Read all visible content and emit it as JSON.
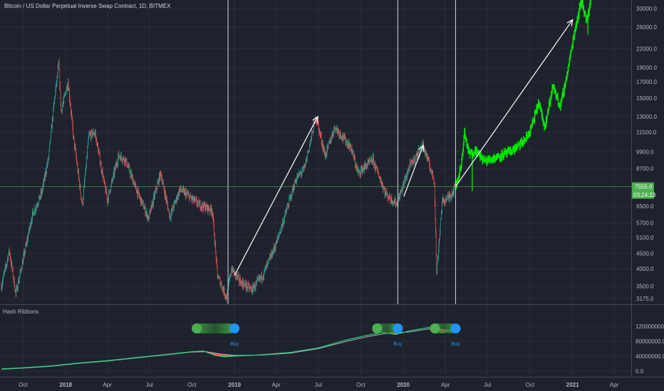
{
  "header": {
    "title": "Bitcoin / US Dollar Perpetual Inverse Swap Contract, 1D, BITMEX"
  },
  "hash_panel": {
    "title": "Hash Ribbons"
  },
  "colors": {
    "background": "#1e222d",
    "grid": "#2a2e39",
    "up": "#26a69a",
    "down": "#ef5350",
    "projection": "#00e600",
    "price_badge": "#4caf50",
    "fast_ma": "#26d07c",
    "slow_ma": "#aeb2bd",
    "compression": "#ef5350",
    "buy_label": "#2196f3",
    "axis_text": "#b2b5be"
  },
  "chart_data": {
    "type": "candlestick",
    "symbol": "XBTUSD",
    "exchange": "BITMEX",
    "timeframe": "1D",
    "y_scale": "log",
    "price_axis_ticks": [
      "30000.0",
      "26000.0",
      "22000.0",
      "19000.0",
      "17000.0",
      "15000.0",
      "13000.0",
      "11500.0",
      "9900.0",
      "8700.0",
      "6500.0",
      "5700.0",
      "5100.0",
      "4500.0",
      "4000.0",
      "3500.0",
      "3175.0"
    ],
    "price_axis_ticks_values": [
      30000,
      26000,
      22000,
      19000,
      17000,
      15000,
      13000,
      11500,
      9900,
      8700,
      6500,
      5700,
      5100,
      4500,
      4000,
      3500,
      3175
    ],
    "current_price": {
      "label": "7555.0",
      "value": 7555
    },
    "countdown": "03:24:23",
    "x_axis_ticks": [
      "Oct",
      "2018",
      "Apr",
      "Jul",
      "Oct",
      "2019",
      "Apr",
      "Jul",
      "Oct",
      "2020",
      "Apr",
      "Jul",
      "Oct",
      "2021",
      "Apr"
    ],
    "price_path": [
      [
        "2017-08-15",
        3500
      ],
      [
        "2017-09-01",
        4600
      ],
      [
        "2017-09-15",
        3300
      ],
      [
        "2017-10-01",
        4300
      ],
      [
        "2017-10-20",
        6000
      ],
      [
        "2017-11-10",
        7200
      ],
      [
        "2017-11-25",
        9500
      ],
      [
        "2017-12-08",
        15000
      ],
      [
        "2017-12-17",
        19600
      ],
      [
        "2017-12-22",
        13500
      ],
      [
        "2018-01-06",
        17000
      ],
      [
        "2018-01-18",
        11000
      ],
      [
        "2018-02-06",
        6500
      ],
      [
        "2018-02-20",
        11200
      ],
      [
        "2018-03-05",
        11500
      ],
      [
        "2018-04-01",
        6800
      ],
      [
        "2018-04-25",
        9600
      ],
      [
        "2018-05-10",
        9300
      ],
      [
        "2018-06-01",
        7500
      ],
      [
        "2018-06-29",
        5900
      ],
      [
        "2018-07-25",
        8400
      ],
      [
        "2018-08-14",
        6000
      ],
      [
        "2018-09-05",
        7400
      ],
      [
        "2018-10-15",
        6600
      ],
      [
        "2018-11-14",
        6300
      ],
      [
        "2018-11-25",
        3800
      ],
      [
        "2018-12-15",
        3200
      ],
      [
        "2018-12-25",
        4000
      ],
      [
        "2019-01-15",
        3600
      ],
      [
        "2019-02-08",
        3400
      ],
      [
        "2019-03-05",
        3850
      ],
      [
        "2019-04-02",
        4900
      ],
      [
        "2019-05-14",
        8000
      ],
      [
        "2019-06-01",
        8700
      ],
      [
        "2019-06-26",
        13000
      ],
      [
        "2019-07-16",
        9600
      ],
      [
        "2019-08-06",
        12000
      ],
      [
        "2019-09-10",
        10200
      ],
      [
        "2019-09-25",
        8400
      ],
      [
        "2019-10-27",
        9300
      ],
      [
        "2019-11-25",
        7100
      ],
      [
        "2019-12-18",
        6600
      ],
      [
        "2020-01-14",
        8800
      ],
      [
        "2020-02-13",
        10400
      ],
      [
        "2020-03-08",
        7900
      ],
      [
        "2020-03-13",
        3900
      ],
      [
        "2020-03-25",
        6700
      ],
      [
        "2020-04-10",
        7000
      ],
      [
        "2020-04-23",
        7555
      ]
    ],
    "projection_path": [
      [
        "2020-04-23",
        7555
      ],
      [
        "2020-05-05",
        8800
      ],
      [
        "2020-05-12",
        11500
      ],
      [
        "2020-05-22",
        9700
      ],
      [
        "2020-06-05",
        10000
      ],
      [
        "2020-06-25",
        9200
      ],
      [
        "2020-07-20",
        9500
      ],
      [
        "2020-08-20",
        9900
      ],
      [
        "2020-09-20",
        10800
      ],
      [
        "2020-10-01",
        11600
      ],
      [
        "2020-10-20",
        14500
      ],
      [
        "2020-11-01",
        12000
      ],
      [
        "2020-11-20",
        16500
      ],
      [
        "2020-12-05",
        14000
      ],
      [
        "2020-12-20",
        18000
      ],
      [
        "2021-01-05",
        25000
      ],
      [
        "2021-01-20",
        32000
      ],
      [
        "2021-02-01",
        27000
      ],
      [
        "2021-02-10",
        33000
      ]
    ],
    "projection_lows": [
      [
        "2020-05-29",
        7300
      ],
      [
        "2021-02-03",
        24500
      ]
    ],
    "arrows": [
      {
        "from": [
          "2019-01-01",
          3800
        ],
        "to": [
          "2019-06-30",
          13000
        ]
      },
      {
        "from": [
          "2020-01-02",
          7000
        ],
        "to": [
          "2020-02-13",
          10400
        ]
      },
      {
        "from": [
          "2020-04-23",
          7555
        ],
        "to": [
          "2021-01-01",
          27500
        ]
      }
    ],
    "vertical_lines": [
      "2018-12-18",
      "2019-12-20",
      "2020-04-23"
    ],
    "hash_ribbons": {
      "title": "Hash Ribbons",
      "y_ticks": [
        "120000000.0",
        "80000000.0",
        "40000000.0",
        "0.0"
      ],
      "y_ticks_values": [
        120000000,
        80000000,
        40000000,
        0
      ],
      "fast_ma": [
        [
          "2017-08-15",
          6000000
        ],
        [
          "2017-10-01",
          9000000
        ],
        [
          "2017-12-01",
          14000000
        ],
        [
          "2018-02-01",
          22000000
        ],
        [
          "2018-04-01",
          28000000
        ],
        [
          "2018-06-01",
          36000000
        ],
        [
          "2018-08-01",
          44000000
        ],
        [
          "2018-10-01",
          52000000
        ],
        [
          "2018-10-25",
          54000000
        ],
        [
          "2018-11-20",
          42000000
        ],
        [
          "2018-12-10",
          38000000
        ],
        [
          "2019-01-01",
          40000000
        ],
        [
          "2019-03-01",
          44000000
        ],
        [
          "2019-05-01",
          50000000
        ],
        [
          "2019-07-01",
          62000000
        ],
        [
          "2019-09-01",
          84000000
        ],
        [
          "2019-10-15",
          96000000
        ],
        [
          "2019-11-20",
          104000000
        ],
        [
          "2019-12-15",
          98000000
        ],
        [
          "2020-01-15",
          108000000
        ],
        [
          "2020-03-01",
          118000000
        ],
        [
          "2020-03-25",
          102000000
        ],
        [
          "2020-04-10",
          110000000
        ],
        [
          "2020-04-23",
          112000000
        ]
      ],
      "slow_ma": [
        [
          "2017-08-15",
          5000000
        ],
        [
          "2017-10-01",
          8000000
        ],
        [
          "2017-12-01",
          13000000
        ],
        [
          "2018-02-01",
          21000000
        ],
        [
          "2018-04-01",
          27000000
        ],
        [
          "2018-06-01",
          35000000
        ],
        [
          "2018-08-01",
          43000000
        ],
        [
          "2018-10-01",
          51000000
        ],
        [
          "2018-11-01",
          52000000
        ],
        [
          "2018-12-01",
          46000000
        ],
        [
          "2019-01-01",
          42000000
        ],
        [
          "2019-03-01",
          43000000
        ],
        [
          "2019-05-01",
          48000000
        ],
        [
          "2019-07-01",
          60000000
        ],
        [
          "2019-09-01",
          80000000
        ],
        [
          "2019-10-15",
          92000000
        ],
        [
          "2019-11-20",
          100000000
        ],
        [
          "2019-12-15",
          103000000
        ],
        [
          "2020-01-15",
          105000000
        ],
        [
          "2020-03-01",
          114000000
        ],
        [
          "2020-03-25",
          112000000
        ],
        [
          "2020-04-10",
          108000000
        ],
        [
          "2020-04-23",
          109000000
        ]
      ],
      "buy_signals": [
        {
          "date": "2019-01-01",
          "label": "Buy"
        },
        {
          "date": "2019-12-20",
          "label": "Buy"
        },
        {
          "date": "2020-04-23",
          "label": "Buy"
        }
      ]
    }
  }
}
